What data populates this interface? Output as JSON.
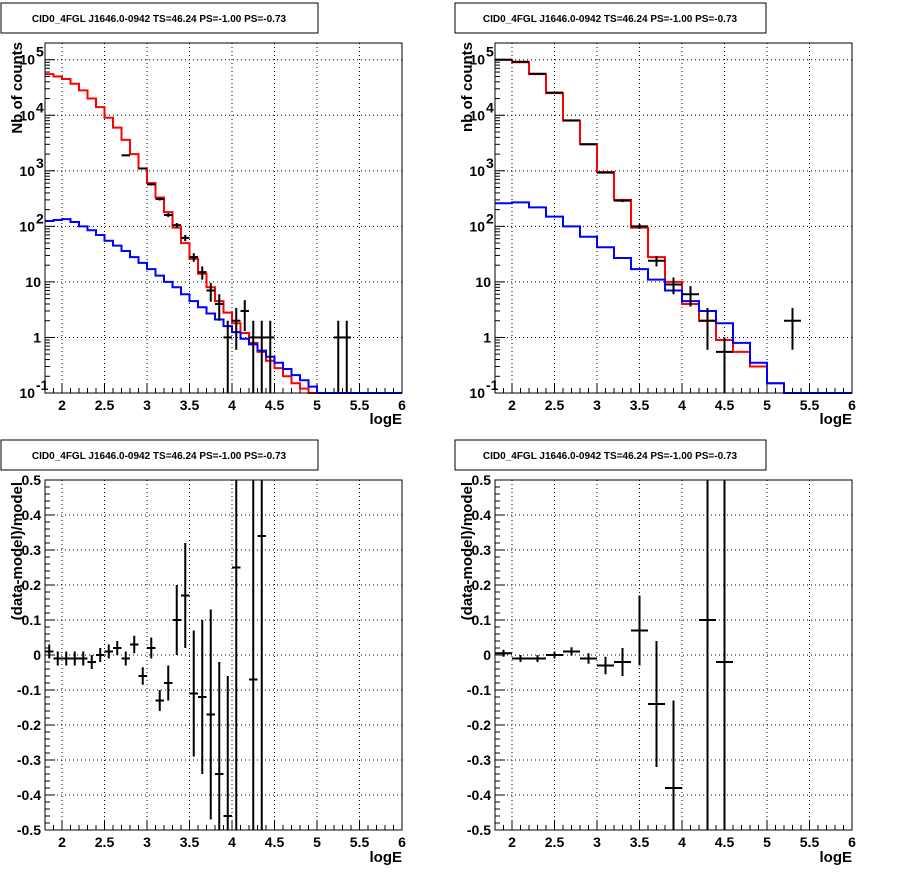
{
  "chart_data": [
    {
      "type": "line",
      "title": "CID0_4FGL J1646.0-0942 TS=46.24 PS=-1.00 PS=-0.73",
      "xlabel": "logE",
      "ylabel": "Nb of counts",
      "xlim": [
        1.8,
        6.0
      ],
      "ylim": [
        0.1,
        200000
      ],
      "yscale": "log",
      "grid": true,
      "xticks": [
        "2",
        "2.5",
        "3",
        "3.5",
        "4",
        "4.5",
        "5",
        "5.5",
        "6"
      ],
      "yticks": [
        "10^-1",
        "1",
        "10",
        "10^2",
        "10^3",
        "10^4",
        "10^5"
      ],
      "binwidth": 0.1,
      "series": [
        {
          "color": "#ff0000",
          "steps": [
            [
              1.8,
              55000
            ],
            [
              1.9,
              50000
            ],
            [
              2.0,
              45000
            ],
            [
              2.1,
              37000
            ],
            [
              2.2,
              28000
            ],
            [
              2.3,
              20000
            ],
            [
              2.4,
              14000
            ],
            [
              2.5,
              9000
            ],
            [
              2.6,
              6000
            ],
            [
              2.7,
              3600
            ],
            [
              2.8,
              2000
            ],
            [
              2.9,
              1100
            ],
            [
              3.0,
              600
            ],
            [
              3.1,
              330
            ],
            [
              3.2,
              180
            ],
            [
              3.3,
              95
            ],
            [
              3.4,
              50
            ],
            [
              3.5,
              26
            ],
            [
              3.6,
              14
            ],
            [
              3.7,
              8
            ],
            [
              3.8,
              4.5
            ],
            [
              3.9,
              2.8
            ],
            [
              4.0,
              1.8
            ],
            [
              4.1,
              1.2
            ],
            [
              4.2,
              0.8
            ],
            [
              4.3,
              0.55
            ],
            [
              4.4,
              0.38
            ],
            [
              4.5,
              0.28
            ],
            [
              4.6,
              0.2
            ],
            [
              4.7,
              0.15
            ],
            [
              4.8,
              0.12
            ],
            [
              4.9,
              0.1
            ],
            [
              5.0,
              0.1
            ],
            [
              5.1,
              0.1
            ],
            [
              5.2,
              0.1
            ],
            [
              5.3,
              0.1
            ],
            [
              5.4,
              0.1
            ],
            [
              5.5,
              0.1
            ],
            [
              5.6,
              0.1
            ],
            [
              5.7,
              0.1
            ],
            [
              5.8,
              0.1
            ],
            [
              5.9,
              0.1
            ]
          ]
        },
        {
          "color": "#0000ff",
          "steps": [
            [
              1.8,
              125
            ],
            [
              1.9,
              130
            ],
            [
              2.0,
              135
            ],
            [
              2.1,
              120
            ],
            [
              2.2,
              100
            ],
            [
              2.3,
              85
            ],
            [
              2.4,
              70
            ],
            [
              2.5,
              55
            ],
            [
              2.6,
              45
            ],
            [
              2.7,
              36
            ],
            [
              2.8,
              28
            ],
            [
              2.9,
              22
            ],
            [
              3.0,
              17
            ],
            [
              3.1,
              13
            ],
            [
              3.2,
              10
            ],
            [
              3.3,
              8
            ],
            [
              3.4,
              6
            ],
            [
              3.5,
              4.5
            ],
            [
              3.6,
              3.5
            ],
            [
              3.7,
              2.7
            ],
            [
              3.8,
              2.1
            ],
            [
              3.9,
              1.6
            ],
            [
              4.0,
              1.25
            ],
            [
              4.1,
              0.95
            ],
            [
              4.2,
              0.75
            ],
            [
              4.3,
              0.58
            ],
            [
              4.4,
              0.45
            ],
            [
              4.5,
              0.35
            ],
            [
              4.6,
              0.27
            ],
            [
              4.7,
              0.21
            ],
            [
              4.8,
              0.17
            ],
            [
              4.9,
              0.13
            ],
            [
              5.0,
              0.1
            ],
            [
              5.1,
              0.1
            ],
            [
              5.2,
              0.1
            ],
            [
              5.3,
              0.1
            ],
            [
              5.4,
              0.1
            ],
            [
              5.5,
              0.1
            ],
            [
              5.6,
              0.1
            ],
            [
              5.7,
              0.1
            ],
            [
              5.8,
              0.1
            ],
            [
              5.9,
              0.1
            ]
          ]
        }
      ],
      "points": [
        [
          2.75,
          1900,
          0.05,
          40
        ],
        [
          2.95,
          1100,
          0.05,
          30
        ],
        [
          3.05,
          570,
          0.05,
          24
        ],
        [
          3.15,
          310,
          0.05,
          18
        ],
        [
          3.25,
          160,
          0.05,
          13
        ],
        [
          3.35,
          105,
          0.05,
          10
        ],
        [
          3.45,
          62,
          0.05,
          8
        ],
        [
          3.55,
          28,
          0.05,
          5
        ],
        [
          3.65,
          15,
          0.05,
          4
        ],
        [
          3.75,
          7,
          0.05,
          2.6
        ],
        [
          3.85,
          4,
          0.05,
          2
        ],
        [
          3.95,
          1,
          0.05,
          1
        ],
        [
          4.05,
          2,
          0.05,
          1.4
        ],
        [
          4.15,
          3,
          0.05,
          1.7
        ],
        [
          4.25,
          1,
          0.05,
          1
        ],
        [
          4.35,
          1,
          0.05,
          1
        ],
        [
          4.45,
          1,
          0.05,
          1
        ],
        [
          5.25,
          1,
          0.05,
          1
        ],
        [
          5.35,
          1,
          0.05,
          1
        ]
      ]
    },
    {
      "type": "line",
      "title": "CID0_4FGL J1646.0-0942 TS=46.24 PS=-1.00 PS=-0.73",
      "xlabel": "logE",
      "ylabel": "nb of counts",
      "xlim": [
        1.8,
        6.0
      ],
      "ylim": [
        0.1,
        200000
      ],
      "yscale": "log",
      "grid": true,
      "xticks": [
        "2",
        "2.5",
        "3",
        "3.5",
        "4",
        "4.5",
        "5",
        "5.5",
        "6"
      ],
      "yticks": [
        "10^-1",
        "1",
        "10",
        "10^2",
        "10^3",
        "10^4",
        "10^5"
      ],
      "binwidth": 0.2,
      "series": [
        {
          "color": "#ff0000",
          "steps": [
            [
              1.8,
              100000
            ],
            [
              2.0,
              90000
            ],
            [
              2.2,
              55000
            ],
            [
              2.4,
              25000
            ],
            [
              2.6,
              8000
            ],
            [
              2.8,
              3000
            ],
            [
              3.0,
              950
            ],
            [
              3.2,
              300
            ],
            [
              3.4,
              95
            ],
            [
              3.6,
              28
            ],
            [
              3.8,
              10
            ],
            [
              4.0,
              4
            ],
            [
              4.2,
              2
            ],
            [
              4.4,
              0.9
            ],
            [
              4.6,
              0.55
            ],
            [
              4.8,
              0.3
            ],
            [
              5.0,
              0.15
            ],
            [
              5.2,
              0.1
            ],
            [
              5.4,
              0.1
            ],
            [
              5.6,
              0.1
            ],
            [
              5.8,
              0.1
            ]
          ]
        },
        {
          "color": "#0000ff",
          "steps": [
            [
              1.8,
              260
            ],
            [
              2.0,
              270
            ],
            [
              2.2,
              220
            ],
            [
              2.4,
              150
            ],
            [
              2.6,
              100
            ],
            [
              2.8,
              65
            ],
            [
              3.0,
              42
            ],
            [
              3.2,
              27
            ],
            [
              3.4,
              17
            ],
            [
              3.6,
              11
            ],
            [
              3.8,
              7
            ],
            [
              4.0,
              4.5
            ],
            [
              4.2,
              3
            ],
            [
              4.4,
              1.8
            ],
            [
              4.6,
              0.8
            ],
            [
              4.8,
              0.35
            ],
            [
              5.0,
              0.15
            ],
            [
              5.2,
              0.1
            ],
            [
              5.4,
              0.1
            ],
            [
              5.6,
              0.1
            ],
            [
              5.8,
              0.1
            ]
          ]
        }
      ],
      "points": [
        [
          1.9,
          100000,
          0.1,
          300
        ],
        [
          2.1,
          92000,
          0.1,
          300
        ],
        [
          2.3,
          56000,
          0.1,
          240
        ],
        [
          2.5,
          25500,
          0.1,
          160
        ],
        [
          2.7,
          8100,
          0.1,
          90
        ],
        [
          2.9,
          3000,
          0.1,
          55
        ],
        [
          3.1,
          930,
          0.1,
          30
        ],
        [
          3.3,
          290,
          0.1,
          17
        ],
        [
          3.5,
          100,
          0.1,
          10
        ],
        [
          3.7,
          24,
          0.1,
          5
        ],
        [
          3.9,
          9,
          0.1,
          3
        ],
        [
          4.1,
          6,
          0.1,
          2.4
        ],
        [
          4.3,
          2,
          0.1,
          1.4
        ],
        [
          4.5,
          0.55,
          0.1,
          0.45
        ],
        [
          5.3,
          2,
          0.1,
          1.4
        ]
      ]
    },
    {
      "type": "scatter",
      "title": "CID0_4FGL J1646.0-0942 TS=46.24 PS=-1.00 PS=-0.73",
      "xlabel": "logE",
      "ylabel": "(data-model)/model",
      "xlim": [
        1.8,
        6.0
      ],
      "ylim": [
        -0.5,
        0.5
      ],
      "grid": true,
      "xticks": [
        "2",
        "2.5",
        "3",
        "3.5",
        "4",
        "4.5",
        "5",
        "5.5",
        "6"
      ],
      "yticks": [
        "-0.5",
        "-0.4",
        "-0.3",
        "-0.2",
        "-0.1",
        "0",
        "0.1",
        "0.2",
        "0.3",
        "0.4",
        "0.5"
      ],
      "points": [
        [
          1.85,
          0.01,
          0.05,
          0.02
        ],
        [
          1.95,
          -0.01,
          0.05,
          0.02
        ],
        [
          2.05,
          -0.01,
          0.05,
          0.02
        ],
        [
          2.15,
          -0.01,
          0.05,
          0.02
        ],
        [
          2.25,
          -0.01,
          0.05,
          0.02
        ],
        [
          2.35,
          -0.02,
          0.05,
          0.02
        ],
        [
          2.45,
          0.0,
          0.05,
          0.02
        ],
        [
          2.55,
          0.01,
          0.05,
          0.02
        ],
        [
          2.65,
          0.02,
          0.05,
          0.02
        ],
        [
          2.75,
          -0.01,
          0.05,
          0.02
        ],
        [
          2.85,
          0.03,
          0.05,
          0.025
        ],
        [
          2.95,
          -0.06,
          0.05,
          0.025
        ],
        [
          3.05,
          0.02,
          0.05,
          0.03
        ],
        [
          3.15,
          -0.13,
          0.05,
          0.03
        ],
        [
          3.25,
          -0.08,
          0.05,
          0.05
        ],
        [
          3.35,
          0.1,
          0.05,
          0.1
        ],
        [
          3.45,
          0.17,
          0.05,
          0.15
        ],
        [
          3.55,
          -0.11,
          0.05,
          0.18
        ],
        [
          3.65,
          -0.12,
          0.05,
          0.22
        ],
        [
          3.75,
          -0.17,
          0.05,
          0.3
        ],
        [
          3.85,
          -0.34,
          0.05,
          0.32
        ],
        [
          3.95,
          -0.46,
          0.05,
          0.4
        ],
        [
          4.05,
          0.25,
          0.05,
          0.9
        ],
        [
          4.25,
          -0.07,
          0.05,
          0.9
        ],
        [
          4.35,
          0.34,
          0.05,
          1.3
        ]
      ]
    },
    {
      "type": "scatter",
      "title": "CID0_4FGL J1646.0-0942 TS=46.24 PS=-1.00 PS=-0.73",
      "xlabel": "logE",
      "ylabel": "(data-model)/model",
      "xlim": [
        1.8,
        6.0
      ],
      "ylim": [
        -0.5,
        0.5
      ],
      "grid": true,
      "xticks": [
        "2",
        "2.5",
        "3",
        "3.5",
        "4",
        "4.5",
        "5",
        "5.5",
        "6"
      ],
      "yticks": [
        "-0.5",
        "-0.4",
        "-0.3",
        "-0.2",
        "-0.1",
        "0",
        "0.1",
        "0.2",
        "0.3",
        "0.4",
        "0.5"
      ],
      "points": [
        [
          1.9,
          0.005,
          0.1,
          0.01
        ],
        [
          2.1,
          -0.01,
          0.1,
          0.01
        ],
        [
          2.3,
          -0.01,
          0.1,
          0.01
        ],
        [
          2.5,
          0.0,
          0.1,
          0.01
        ],
        [
          2.7,
          0.01,
          0.1,
          0.012
        ],
        [
          2.9,
          -0.01,
          0.1,
          0.015
        ],
        [
          3.1,
          -0.03,
          0.1,
          0.025
        ],
        [
          3.3,
          -0.02,
          0.1,
          0.04
        ],
        [
          3.5,
          0.07,
          0.1,
          0.1
        ],
        [
          3.7,
          -0.14,
          0.1,
          0.18
        ],
        [
          3.9,
          -0.38,
          0.1,
          0.25
        ],
        [
          4.3,
          0.1,
          0.1,
          0.9
        ],
        [
          4.5,
          -0.02,
          0.1,
          0.9
        ]
      ]
    }
  ]
}
